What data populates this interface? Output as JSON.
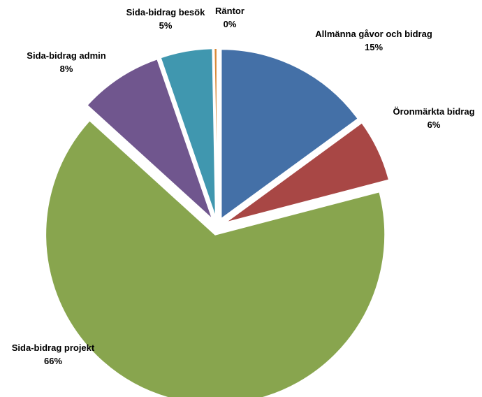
{
  "chart_data": {
    "type": "pie",
    "slices": [
      {
        "label": "Allmänna gåvor och bidrag",
        "percent_label": "15%",
        "value": 15,
        "color": "#4470A7"
      },
      {
        "label": "Öronmärkta bidrag",
        "percent_label": "6%",
        "value": 6,
        "color": "#A84745"
      },
      {
        "label": "Sida-bidrag projekt",
        "percent_label": "66%",
        "value": 66,
        "color": "#88A54E"
      },
      {
        "label": "Sida-bidrag admin",
        "percent_label": "8%",
        "value": 8,
        "color": "#70568E"
      },
      {
        "label": "Sida-bidrag besök",
        "percent_label": "5%",
        "value": 5,
        "color": "#4097AF"
      },
      {
        "label": "Räntor",
        "percent_label": "0%",
        "value": 0.3,
        "color": "#D98B3A"
      }
    ],
    "exploded": true,
    "legend": "none",
    "start": "top",
    "direction": "clockwise"
  }
}
